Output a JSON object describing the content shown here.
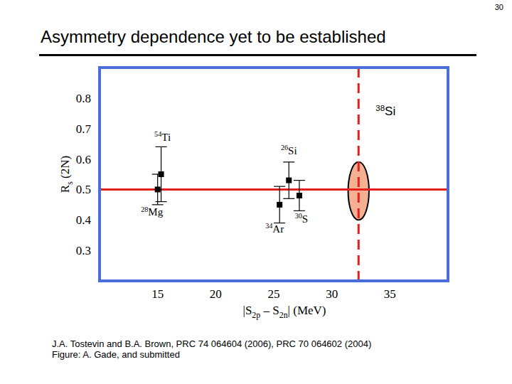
{
  "page_number": "30",
  "title": "Asymmetry dependence yet to be established",
  "chart_data": {
    "type": "scatter",
    "x_label": [
      {
        "text": "|S"
      },
      {
        "text": "2p",
        "sub": true
      },
      {
        "text": " – S"
      },
      {
        "text": "2n",
        "sub": true
      },
      {
        "text": "|  (MeV)"
      }
    ],
    "y_label": [
      {
        "text": "R"
      },
      {
        "text": "s",
        "sub": true
      },
      {
        "text": " (2N)"
      }
    ],
    "xlim": [
      10,
      40
    ],
    "xticks": [
      15,
      20,
      25,
      30,
      35
    ],
    "ylim": [
      0.2,
      0.9
    ],
    "yticks": [
      0.3,
      0.4,
      0.5,
      0.6,
      0.7,
      0.8
    ],
    "color": "#000000",
    "marker": "square",
    "points": [
      {
        "x": 15.3,
        "y": 0.55,
        "error": 0.09,
        "mass": "54",
        "element": "Ti"
      },
      {
        "x": 15.0,
        "y": 0.5,
        "error": 0.05,
        "mass": "28",
        "element": "Mg"
      },
      {
        "x": 25.5,
        "y": 0.45,
        "error": 0.06,
        "mass": "34",
        "element": "Ar"
      },
      {
        "x": 26.3,
        "y": 0.53,
        "error": 0.06,
        "mass": "26",
        "element": "Si"
      },
      {
        "x": 27.2,
        "y": 0.48,
        "error": 0.05,
        "mass": "30",
        "element": "S"
      }
    ],
    "reference_y": {
      "value": 0.5,
      "color": "#e3201b",
      "line_style": "solid"
    },
    "reference_x": {
      "value": 32.3,
      "color": "#e3201b",
      "line_style": "dashed",
      "mass": "38",
      "element": "Si"
    },
    "highlight": {
      "x": [
        31.4,
        33.2
      ],
      "y": [
        0.4,
        0.59
      ],
      "color": "#f5b094"
    }
  },
  "footer": [
    "J.A. Tostevin and B.A. Brown, PRC 74 064604 (2006), PRC 70 064602 (2004)",
    "Figure: A. Gade, and submitted"
  ]
}
